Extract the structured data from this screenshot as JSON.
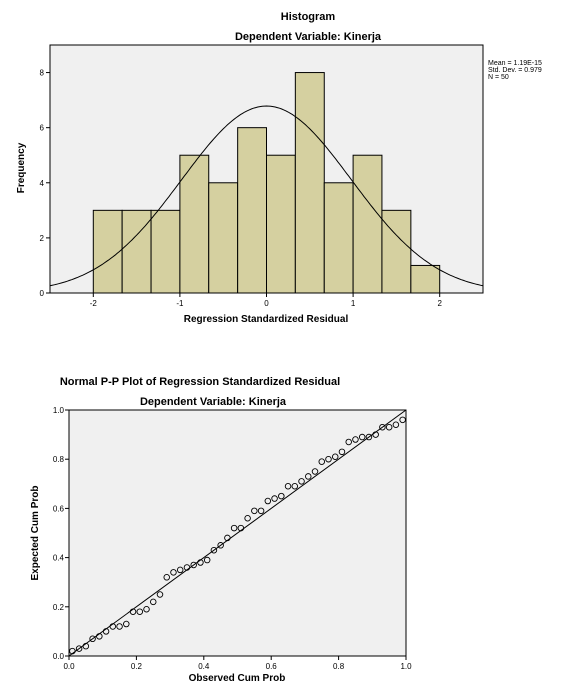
{
  "chart_data": [
    {
      "type": "bar",
      "subtype": "histogram",
      "title": "Histogram",
      "subtitle": "Dependent Variable: Kinerja",
      "xlabel": "Regression Standardized Residual",
      "ylabel": "Frequency",
      "xlim": [
        -2.5,
        2.5
      ],
      "ylim": [
        0,
        9
      ],
      "x_ticks": [
        -2,
        -1,
        0,
        1,
        2
      ],
      "y_ticks": [
        0,
        2,
        4,
        6,
        8
      ],
      "bin_edges": [
        -2.0,
        -1.667,
        -1.333,
        -1.0,
        -0.667,
        -0.333,
        0.0,
        0.333,
        0.667,
        1.0,
        1.333,
        1.667,
        2.0
      ],
      "values": [
        3,
        3,
        3,
        5,
        4,
        6,
        5,
        8,
        4,
        5,
        3,
        1
      ],
      "bar_color": "#d5d0a0",
      "stats": {
        "mean_text": "Mean = 1.19E-15",
        "sd_text": "Std. Dev. = 0.979",
        "n_text": "N = 50",
        "mean": 0,
        "sd": 0.979,
        "n": 50,
        "bin_width": 0.333
      },
      "grid": false
    },
    {
      "type": "scatter",
      "subtype": "normal-pp-plot",
      "title": "Normal P-P Plot of Regression Standardized Residual",
      "subtitle": "Dependent Variable: Kinerja",
      "xlabel": "Observed Cum Prob",
      "ylabel": "Expected Cum Prob",
      "xlim": [
        0,
        1
      ],
      "ylim": [
        0,
        1
      ],
      "x_ticks": [
        "0.0",
        "0.2",
        "0.4",
        "0.6",
        "0.8",
        "1.0"
      ],
      "y_ticks": [
        "0.0",
        "0.2",
        "0.4",
        "0.6",
        "0.8",
        "1.0"
      ],
      "reference_line": [
        [
          0,
          0
        ],
        [
          1,
          1
        ]
      ],
      "points": [
        [
          0.01,
          0.02
        ],
        [
          0.03,
          0.03
        ],
        [
          0.05,
          0.04
        ],
        [
          0.07,
          0.07
        ],
        [
          0.09,
          0.08
        ],
        [
          0.11,
          0.1
        ],
        [
          0.13,
          0.12
        ],
        [
          0.15,
          0.12
        ],
        [
          0.17,
          0.13
        ],
        [
          0.19,
          0.18
        ],
        [
          0.21,
          0.18
        ],
        [
          0.23,
          0.19
        ],
        [
          0.25,
          0.22
        ],
        [
          0.27,
          0.25
        ],
        [
          0.29,
          0.32
        ],
        [
          0.31,
          0.34
        ],
        [
          0.33,
          0.35
        ],
        [
          0.35,
          0.36
        ],
        [
          0.37,
          0.37
        ],
        [
          0.39,
          0.38
        ],
        [
          0.41,
          0.39
        ],
        [
          0.43,
          0.43
        ],
        [
          0.45,
          0.45
        ],
        [
          0.47,
          0.48
        ],
        [
          0.49,
          0.52
        ],
        [
          0.51,
          0.52
        ],
        [
          0.53,
          0.56
        ],
        [
          0.55,
          0.59
        ],
        [
          0.57,
          0.59
        ],
        [
          0.59,
          0.63
        ],
        [
          0.61,
          0.64
        ],
        [
          0.63,
          0.65
        ],
        [
          0.65,
          0.69
        ],
        [
          0.67,
          0.69
        ],
        [
          0.69,
          0.71
        ],
        [
          0.71,
          0.73
        ],
        [
          0.73,
          0.75
        ],
        [
          0.75,
          0.79
        ],
        [
          0.77,
          0.8
        ],
        [
          0.79,
          0.81
        ],
        [
          0.81,
          0.83
        ],
        [
          0.83,
          0.87
        ],
        [
          0.85,
          0.88
        ],
        [
          0.87,
          0.89
        ],
        [
          0.89,
          0.89
        ],
        [
          0.91,
          0.9
        ],
        [
          0.93,
          0.93
        ],
        [
          0.95,
          0.93
        ],
        [
          0.97,
          0.94
        ],
        [
          0.99,
          0.96
        ]
      ],
      "grid": false
    }
  ]
}
